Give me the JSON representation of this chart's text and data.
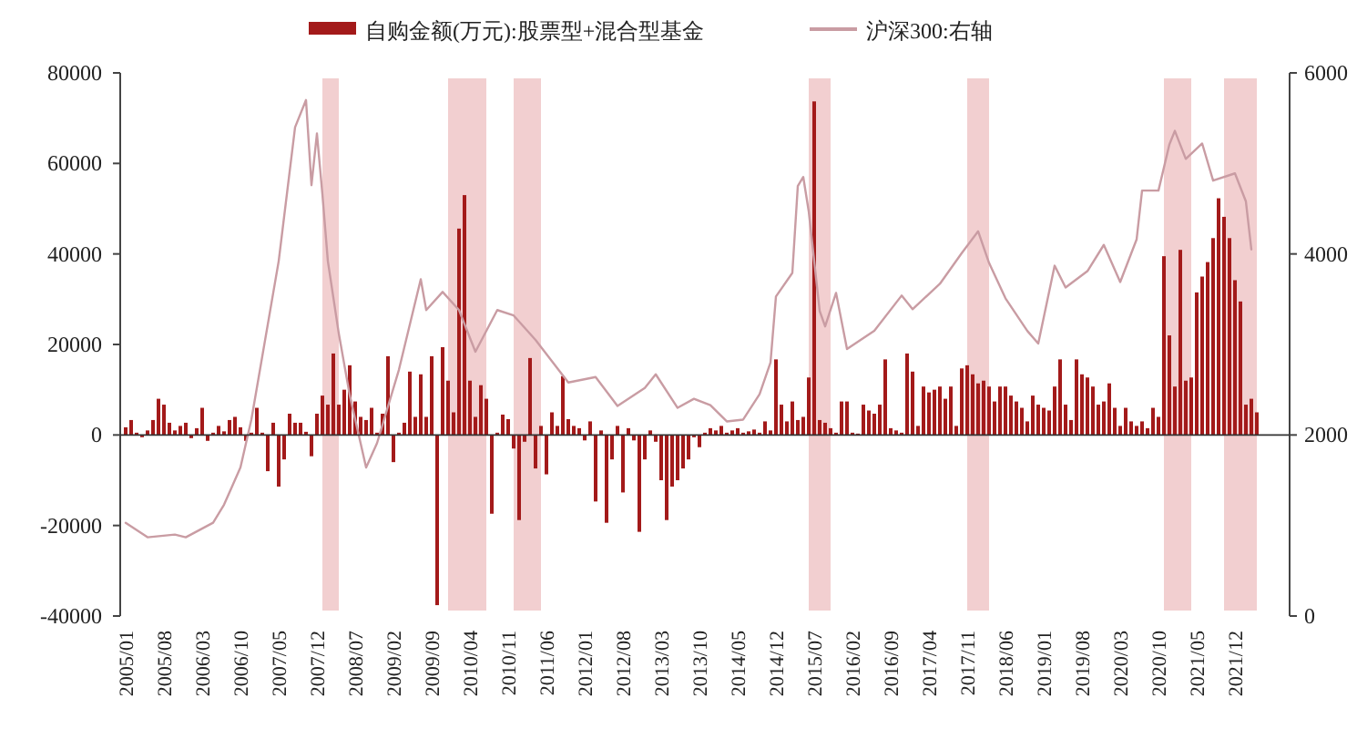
{
  "chart_data": {
    "type": "bar",
    "x": [
      "2005-01",
      "2005-02",
      "2005-03",
      "2005-04",
      "2005-05",
      "2005-06",
      "2005-07",
      "2005-08",
      "2005-09",
      "2005-10",
      "2005-11",
      "2005-12",
      "2006-01",
      "2006-02",
      "2006-03",
      "2006-04",
      "2006-05",
      "2006-06",
      "2006-07",
      "2006-08",
      "2006-09",
      "2006-10",
      "2006-11",
      "2006-12",
      "2007-01",
      "2007-02",
      "2007-03",
      "2007-04",
      "2007-05",
      "2007-06",
      "2007-07",
      "2007-08",
      "2007-09",
      "2007-10",
      "2007-11",
      "2007-12",
      "2008-01",
      "2008-02",
      "2008-03",
      "2008-04",
      "2008-05",
      "2008-06",
      "2008-07",
      "2008-08",
      "2008-09",
      "2008-10",
      "2008-11",
      "2008-12",
      "2009-01",
      "2009-02",
      "2009-03",
      "2009-04",
      "2009-05",
      "2009-06",
      "2009-07",
      "2009-08",
      "2009-09",
      "2009-10",
      "2009-11",
      "2009-12",
      "2010-01",
      "2010-02",
      "2010-03",
      "2010-04",
      "2010-05",
      "2010-06",
      "2010-07",
      "2010-08",
      "2010-09",
      "2010-10",
      "2010-11",
      "2010-12",
      "2011-01",
      "2011-02",
      "2011-03",
      "2011-04",
      "2011-05",
      "2011-06",
      "2011-07",
      "2011-08",
      "2011-09",
      "2011-10",
      "2011-11",
      "2011-12",
      "2012-01",
      "2012-02",
      "2012-03",
      "2012-04",
      "2012-05",
      "2012-06",
      "2012-07",
      "2012-08",
      "2012-09",
      "2012-10",
      "2012-11",
      "2012-12",
      "2013-01",
      "2013-02",
      "2013-03",
      "2013-04",
      "2013-05",
      "2013-06",
      "2013-07",
      "2013-08",
      "2013-09",
      "2013-10",
      "2013-11",
      "2013-12",
      "2014-01",
      "2014-02",
      "2014-03",
      "2014-04",
      "2014-05",
      "2014-06",
      "2014-07",
      "2014-08",
      "2014-09",
      "2014-10",
      "2014-11",
      "2014-12",
      "2015-01",
      "2015-02",
      "2015-03",
      "2015-04",
      "2015-05",
      "2015-06",
      "2015-07",
      "2015-08",
      "2015-09",
      "2015-10",
      "2015-11",
      "2015-12",
      "2016-01",
      "2016-02",
      "2016-03",
      "2016-04",
      "2016-05",
      "2016-06",
      "2016-07",
      "2016-08",
      "2016-09",
      "2016-10",
      "2016-11",
      "2016-12",
      "2017-01",
      "2017-02",
      "2017-03",
      "2017-04",
      "2017-05",
      "2017-06",
      "2017-07",
      "2017-08",
      "2017-09",
      "2017-10",
      "2017-11",
      "2017-12",
      "2018-01",
      "2018-02",
      "2018-03",
      "2018-04",
      "2018-05",
      "2018-06",
      "2018-07",
      "2018-08",
      "2018-09",
      "2018-10",
      "2018-11",
      "2018-12",
      "2019-01",
      "2019-02",
      "2019-03",
      "2019-04",
      "2019-05",
      "2019-06",
      "2019-07",
      "2019-08",
      "2019-09",
      "2019-10",
      "2019-11",
      "2019-12",
      "2020-01",
      "2020-02",
      "2020-03",
      "2020-04",
      "2020-05",
      "2020-06",
      "2020-07",
      "2020-08",
      "2020-09",
      "2020-10",
      "2020-11",
      "2020-12",
      "2021-01",
      "2021-02",
      "2021-03",
      "2021-04",
      "2021-05",
      "2021-06",
      "2021-07",
      "2021-08",
      "2021-09",
      "2021-10",
      "2021-11",
      "2021-12",
      "2022-01",
      "2022-02",
      "2022-03",
      "2022-04"
    ],
    "series": [
      {
        "name": "自购金额(万元):股票型+混合型基金",
        "color": "#a31a1a",
        "values": [
          1700,
          3300,
          500,
          -500,
          1000,
          3300,
          8000,
          6700,
          2700,
          1000,
          2000,
          2700,
          -700,
          1500,
          6000,
          -1300,
          500,
          2000,
          800,
          3300,
          4000,
          1700,
          -1300,
          500,
          6000,
          500,
          -8000,
          2700,
          -11400,
          -5400,
          4700,
          2700,
          2700,
          700,
          -4700,
          4700,
          8700,
          6700,
          18000,
          6700,
          10000,
          15400,
          7400,
          4000,
          3300,
          6000,
          500,
          4700,
          17400,
          -6000,
          500,
          2700,
          14000,
          4000,
          13400,
          4000,
          17400,
          -37600,
          19400,
          12000,
          5000,
          45600,
          53000,
          12000,
          4000,
          11000,
          8000,
          -17400,
          500,
          4500,
          3500,
          -3000,
          -18800,
          -1500,
          17000,
          -7400,
          2000,
          -8700,
          5000,
          2000,
          13000,
          3500,
          2000,
          1500,
          -1200,
          3000,
          -14700,
          1000,
          -19400,
          -5400,
          2000,
          -12700,
          1500,
          -1200,
          -21400,
          -5400,
          1000,
          -1500,
          -10000,
          -18800,
          -11400,
          -10000,
          -7400,
          -5400,
          -500,
          -2700,
          500,
          1500,
          1000,
          2000,
          500,
          1000,
          1500,
          500,
          800,
          1200,
          500,
          3000,
          1000,
          16700,
          6700,
          3000,
          7400,
          3300,
          4000,
          12700,
          73700,
          3300,
          2700,
          1500,
          500,
          7400,
          7400,
          500,
          300,
          6700,
          5400,
          4700,
          6700,
          16700,
          1500,
          1000,
          500,
          18000,
          14000,
          2000,
          10700,
          9400,
          10000,
          10700,
          8000,
          10700,
          2000,
          14700,
          15400,
          13400,
          11400,
          12000,
          10700,
          7400,
          10700,
          10700,
          8700,
          7400,
          6000,
          3000,
          8700,
          6700,
          6000,
          5400,
          10700,
          16700,
          6700,
          3300,
          16700,
          13400,
          12700,
          10700,
          6700,
          7400,
          11400,
          6000,
          2000,
          6000,
          3000,
          2000,
          3000,
          1500,
          6000,
          4000,
          39500,
          22000,
          10700,
          40900,
          12000,
          12700,
          31500,
          35000,
          38200,
          43500,
          52300,
          48200,
          43500,
          34200,
          29500,
          6700,
          8000,
          5000
        ]
      },
      {
        "name": "沪深300:右轴",
        "type": "line",
        "axis": "y2",
        "color": "#c99ca3",
        "x": [
          "2005-01",
          "2005-05",
          "2005-10",
          "2005-12",
          "2006-05",
          "2006-07",
          "2006-10",
          "2006-12",
          "2007-05",
          "2007-08",
          "2007-10",
          "2007-11",
          "2007-12",
          "2008-01",
          "2008-02",
          "2008-04",
          "2008-06",
          "2008-09",
          "2008-11",
          "2009-03",
          "2009-07",
          "2009-08",
          "2009-11",
          "2010-02",
          "2010-05",
          "2010-09",
          "2010-12",
          "2011-04",
          "2011-10",
          "2012-03",
          "2012-07",
          "2012-12",
          "2013-02",
          "2013-06",
          "2013-09",
          "2013-12",
          "2014-03",
          "2014-06",
          "2014-09",
          "2014-11",
          "2014-12",
          "2015-03",
          "2015-04",
          "2015-05",
          "2015-06",
          "2015-08",
          "2015-09",
          "2015-11",
          "2016-01",
          "2016-06",
          "2016-11",
          "2017-01",
          "2017-06",
          "2017-10",
          "2018-01",
          "2018-03",
          "2018-06",
          "2018-10",
          "2018-12",
          "2019-03",
          "2019-05",
          "2019-09",
          "2019-12",
          "2020-03",
          "2020-06",
          "2020-07",
          "2020-10",
          "2020-12",
          "2021-01",
          "2021-03",
          "2021-06",
          "2021-08",
          "2021-12",
          "2022-02",
          "2022-03"
        ],
        "values": [
          1030,
          870,
          900,
          870,
          1030,
          1230,
          1640,
          2170,
          3920,
          5400,
          5700,
          4760,
          5330,
          4660,
          3920,
          3120,
          2440,
          1640,
          1910,
          2720,
          3720,
          3380,
          3580,
          3380,
          2920,
          3380,
          3320,
          3050,
          2580,
          2640,
          2320,
          2520,
          2670,
          2300,
          2400,
          2330,
          2150,
          2170,
          2450,
          2800,
          3530,
          3790,
          4750,
          4850,
          4470,
          3370,
          3200,
          3570,
          2950,
          3150,
          3540,
          3390,
          3670,
          4010,
          4250,
          3900,
          3510,
          3150,
          3010,
          3870,
          3630,
          3810,
          4100,
          3690,
          4160,
          4700,
          4700,
          5210,
          5360,
          5050,
          5220,
          4810,
          4890,
          4580,
          4050
        ]
      }
    ],
    "xlim": [
      "2004-12",
      "2022-10"
    ],
    "xticks": [
      {
        "value": "2005-01",
        "label": "2005/01"
      },
      {
        "value": "2005-08",
        "label": "2005/08"
      },
      {
        "value": "2006-03",
        "label": "2006/03"
      },
      {
        "value": "2006-10",
        "label": "2006/10"
      },
      {
        "value": "2007-05",
        "label": "2007/05"
      },
      {
        "value": "2007-12",
        "label": "2007/12"
      },
      {
        "value": "2008-07",
        "label": "2008/07"
      },
      {
        "value": "2009-02",
        "label": "2009/02"
      },
      {
        "value": "2009-09",
        "label": "2009/09"
      },
      {
        "value": "2010-04",
        "label": "2010/04"
      },
      {
        "value": "2010-11",
        "label": "2010/11"
      },
      {
        "value": "2011-06",
        "label": "2011/06"
      },
      {
        "value": "2012-01",
        "label": "2012/01"
      },
      {
        "value": "2012-08",
        "label": "2012/08"
      },
      {
        "value": "2013-03",
        "label": "2013/03"
      },
      {
        "value": "2013-10",
        "label": "2013/10"
      },
      {
        "value": "2014-05",
        "label": "2014/05"
      },
      {
        "value": "2014-12",
        "label": "2014/12"
      },
      {
        "value": "2015-07",
        "label": "2015/07"
      },
      {
        "value": "2016-02",
        "label": "2016/02"
      },
      {
        "value": "2016-09",
        "label": "2016/09"
      },
      {
        "value": "2017-04",
        "label": "2017/04"
      },
      {
        "value": "2017-11",
        "label": "2017/11"
      },
      {
        "value": "2018-06",
        "label": "2018/06"
      },
      {
        "value": "2019-01",
        "label": "2019/01"
      },
      {
        "value": "2019-08",
        "label": "2019/08"
      },
      {
        "value": "2020-03",
        "label": "2020/03"
      },
      {
        "value": "2020-10",
        "label": "2020/10"
      },
      {
        "value": "2021-05",
        "label": "2021/05"
      },
      {
        "value": "2021-12",
        "label": "2021/12"
      }
    ],
    "ylim": [
      -40000,
      80000
    ],
    "yticks": [
      -40000,
      -20000,
      0,
      20000,
      40000,
      60000,
      80000
    ],
    "y2lim": [
      0,
      6000
    ],
    "y2ticks": [
      0,
      2000,
      4000,
      6000
    ],
    "bands": [
      {
        "axis": "x",
        "from": "2008-01",
        "to": "2008-04",
        "color": "#f2cfd0"
      },
      {
        "axis": "x",
        "from": "2009-12",
        "to": "2010-07",
        "color": "#f2cfd0"
      },
      {
        "axis": "x",
        "from": "2010-12",
        "to": "2011-05",
        "color": "#f2cfd0"
      },
      {
        "axis": "x",
        "from": "2015-06",
        "to": "2015-10",
        "color": "#f2cfd0"
      },
      {
        "axis": "x",
        "from": "2017-11",
        "to": "2018-03",
        "color": "#f2cfd0"
      },
      {
        "axis": "x",
        "from": "2020-11",
        "to": "2021-04",
        "color": "#f2cfd0"
      },
      {
        "axis": "x",
        "from": "2021-10",
        "to": "2022-04",
        "color": "#f2cfd0"
      }
    ],
    "legend": "top"
  }
}
